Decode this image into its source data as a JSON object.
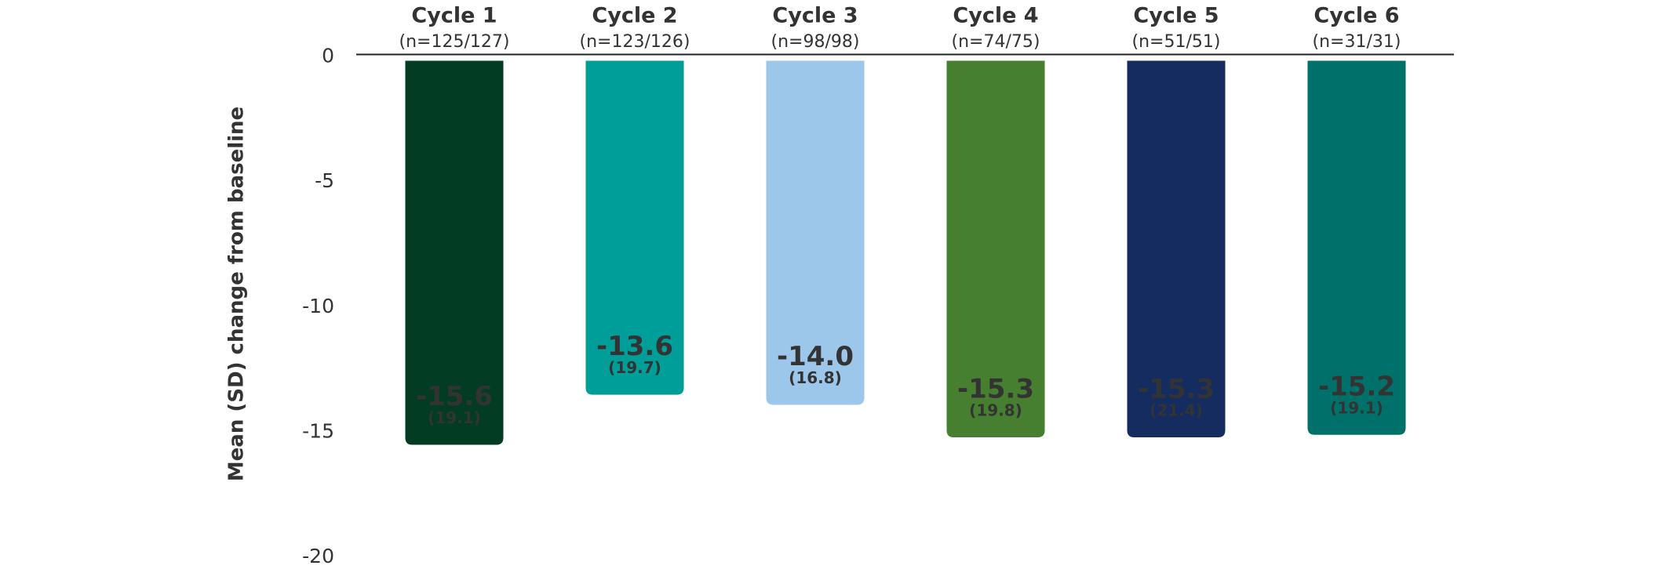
{
  "chart_data": {
    "type": "bar",
    "y_label": "Mean (SD) change from baseline",
    "categories": [
      "Cycle 1",
      "Cycle 2",
      "Cycle 3",
      "Cycle 4",
      "Cycle 5",
      "Cycle 6"
    ],
    "sample_sizes": [
      "(n=125/127)",
      "(n=123/126)",
      "(n=98/98)",
      "(n=74/75)",
      "(n=51/51)",
      "(n=31/31)"
    ],
    "values": [
      -15.6,
      -13.6,
      -14.0,
      -15.3,
      -15.3,
      -15.2
    ],
    "value_labels": [
      "-15.6",
      "-13.6",
      "-14.0",
      "-15.3",
      "-15.3",
      "-15.2"
    ],
    "sd": {
      "values": [
        19.1,
        19.7,
        16.8,
        19.8,
        21.4,
        19.1
      ],
      "value_labels": [
        "(19.1)",
        "(19.7)",
        "(16.8)",
        "(19.8)",
        "(21.4)",
        "(19.1)"
      ]
    },
    "colors": [
      "#023d23",
      "#009e99",
      "#9cc6ea",
      "#467f30",
      "#152c60",
      "#00716a"
    ],
    "ylim": [
      -20,
      0
    ],
    "yticks": [
      0,
      -5,
      -10,
      -15,
      -20
    ],
    "grid": false
  }
}
